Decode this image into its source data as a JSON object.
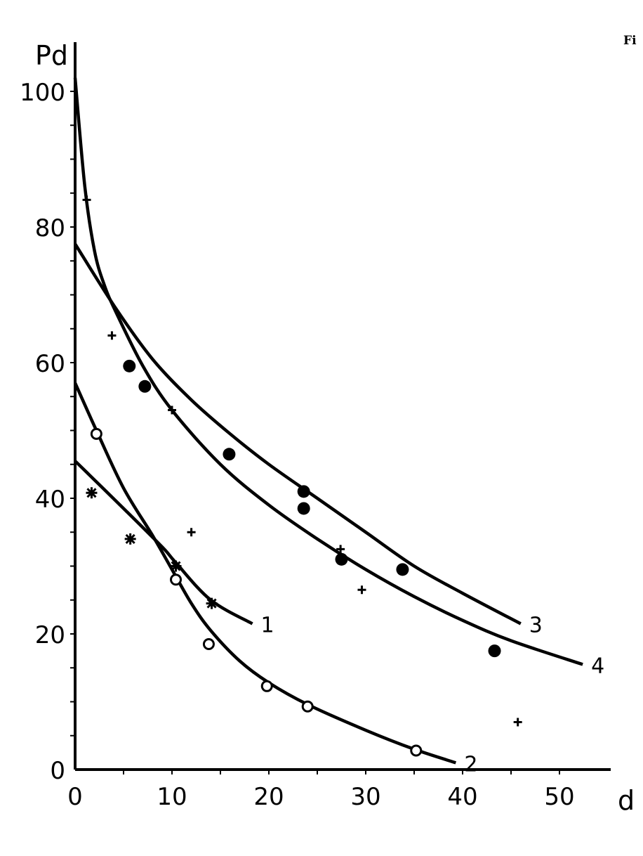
{
  "corner_text": "Fi",
  "chart_data": {
    "type": "scatter",
    "title": "",
    "xlabel": "d",
    "ylabel": "Pd",
    "xlim": [
      0,
      55
    ],
    "ylim": [
      0,
      105
    ],
    "x_ticks": [
      0,
      10,
      20,
      30,
      40,
      50
    ],
    "y_ticks": [
      0,
      20,
      40,
      60,
      80,
      100
    ],
    "grid": false,
    "color": "#000000",
    "series": [
      {
        "marker": "plus",
        "points": [
          [
            1.2,
            84
          ],
          [
            3.8,
            64
          ],
          [
            10,
            53
          ],
          [
            12,
            35
          ],
          [
            27.4,
            32.5
          ],
          [
            29.6,
            26.5
          ],
          [
            45.7,
            7
          ]
        ]
      },
      {
        "marker": "filled-circle",
        "points": [
          [
            5.6,
            59.5
          ],
          [
            7.2,
            56.5
          ],
          [
            15.9,
            46.5
          ],
          [
            23.6,
            41
          ],
          [
            23.6,
            38.5
          ],
          [
            27.5,
            31
          ],
          [
            33.8,
            29.5
          ],
          [
            43.3,
            17.5
          ]
        ]
      },
      {
        "marker": "open-circle",
        "points": [
          [
            2.2,
            49.5
          ],
          [
            10.4,
            28
          ],
          [
            13.8,
            18.5
          ],
          [
            19.8,
            12.3
          ],
          [
            24,
            9.3
          ],
          [
            35.2,
            2.8
          ]
        ]
      },
      {
        "marker": "star",
        "points": [
          [
            1.7,
            40.8
          ],
          [
            5.7,
            34
          ],
          [
            10.4,
            30
          ],
          [
            14.1,
            24.5
          ]
        ]
      }
    ],
    "curves": [
      {
        "label": "1",
        "points": [
          [
            0,
            45.5
          ],
          [
            5,
            38.5
          ],
          [
            9,
            32.8
          ],
          [
            10.4,
            30.5
          ],
          [
            14,
            25
          ],
          [
            18.3,
            21.5
          ]
        ]
      },
      {
        "label": "2",
        "points": [
          [
            0,
            57
          ],
          [
            2.2,
            50
          ],
          [
            5,
            41.5
          ],
          [
            8,
            34.5
          ],
          [
            10,
            29.5
          ],
          [
            12,
            24.5
          ],
          [
            14,
            20.5
          ],
          [
            17,
            16
          ],
          [
            20,
            12.8
          ],
          [
            24,
            9.6
          ],
          [
            30,
            5.8
          ],
          [
            35,
            3
          ],
          [
            39.3,
            1
          ]
        ]
      },
      {
        "label": "3",
        "points": [
          [
            0,
            77.5
          ],
          [
            4.2,
            68
          ],
          [
            8,
            60.5
          ],
          [
            12,
            54.5
          ],
          [
            16,
            49.5
          ],
          [
            20,
            45
          ],
          [
            25,
            40
          ],
          [
            30,
            35
          ],
          [
            35,
            30
          ],
          [
            40,
            26
          ],
          [
            46,
            21.5
          ]
        ]
      },
      {
        "label": "4",
        "points": [
          [
            0,
            102
          ],
          [
            1,
            86
          ],
          [
            2,
            76.5
          ],
          [
            3,
            71.5
          ],
          [
            4.2,
            67.5
          ],
          [
            7,
            59.5
          ],
          [
            10,
            53
          ],
          [
            15,
            45
          ],
          [
            20,
            39
          ],
          [
            25,
            34
          ],
          [
            30,
            29.5
          ],
          [
            35,
            25.5
          ],
          [
            40,
            22
          ],
          [
            45,
            19
          ],
          [
            52.4,
            15.5
          ]
        ]
      }
    ]
  }
}
